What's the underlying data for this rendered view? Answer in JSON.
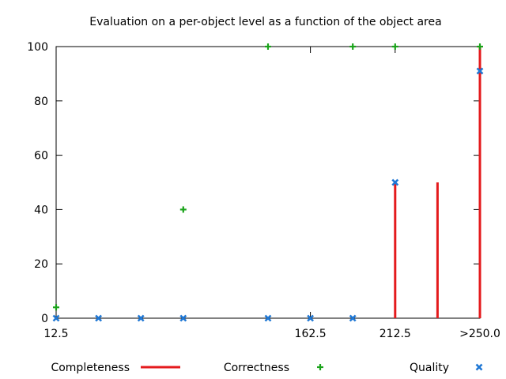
{
  "chart_data": {
    "type": "scatter",
    "title": "Evaluation on a per-object level as a function of the object area",
    "xlabel": "",
    "ylabel": "",
    "xlim": [
      12.5,
      262.5
    ],
    "ylim": [
      0,
      100
    ],
    "x_ticks": [
      {
        "value": 12.5,
        "label": "12.5"
      },
      {
        "value": 162.5,
        "label": "162.5"
      },
      {
        "value": 212.5,
        "label": "212.5"
      },
      {
        "value": 262.5,
        "label": ">250.0"
      }
    ],
    "y_ticks": [
      0,
      20,
      40,
      60,
      80,
      100
    ],
    "grid": false,
    "legend_position": "bottom",
    "series": [
      {
        "name": "Completeness",
        "style": "impulses",
        "color": "#e41a1c",
        "x": [
          12.5,
          37.5,
          62.5,
          87.5,
          137.5,
          162.5,
          187.5,
          212.5,
          237.5,
          262.5
        ],
        "y": [
          0,
          0,
          0,
          0,
          0,
          0,
          0,
          50,
          50,
          100
        ]
      },
      {
        "name": "Correctness",
        "style": "plus",
        "color": "#1aa31a",
        "x": [
          12.5,
          87.5,
          137.5,
          187.5,
          212.5,
          262.5
        ],
        "y": [
          4,
          40,
          100,
          100,
          100,
          100
        ]
      },
      {
        "name": "Quality",
        "style": "cross",
        "color": "#1f77d4",
        "x": [
          12.5,
          37.5,
          62.5,
          87.5,
          137.5,
          162.5,
          187.5,
          212.5,
          262.5
        ],
        "y": [
          0,
          0,
          0,
          0,
          0,
          0,
          0,
          50,
          91
        ]
      }
    ]
  }
}
